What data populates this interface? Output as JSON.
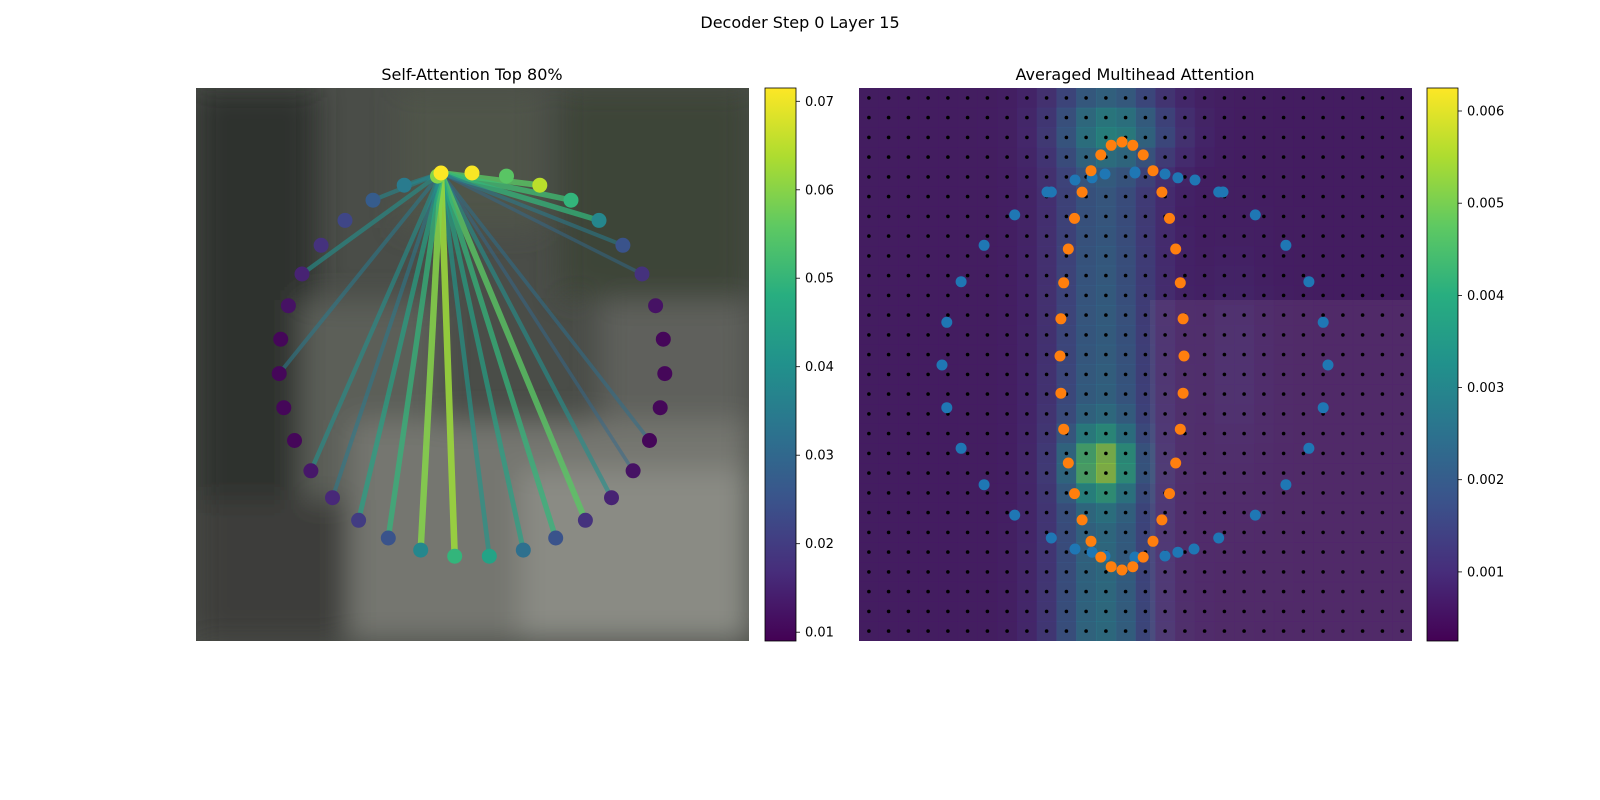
{
  "figure": {
    "suptitle": "Decoder Step 0 Layer 15"
  },
  "chart_data": [
    {
      "type": "scatter",
      "title": "Self-Attention Top 80%",
      "description_kind": "attention graph over a ring of points with colorbar",
      "colormap": "viridis",
      "colorbar": {
        "range": [
          0.009,
          0.0715
        ],
        "ticks": [
          "0.01",
          "0.02",
          "0.03",
          "0.04",
          "0.05",
          "0.06",
          "0.07"
        ]
      },
      "source_point": 0,
      "point_attention": [
        0.071,
        0.055,
        0.065,
        0.05,
        0.038,
        0.025,
        0.018,
        0.012,
        0.01,
        0.01,
        0.01,
        0.01,
        0.012,
        0.015,
        0.018,
        0.025,
        0.032,
        0.045,
        0.05,
        0.038,
        0.025,
        0.02,
        0.016,
        0.013,
        0.01,
        0.01,
        0.01,
        0.01,
        0.012,
        0.015,
        0.018,
        0.022,
        0.027,
        0.035,
        0.06
      ],
      "edge_weights": [
        {
          "to": 34,
          "w": 0.06
        },
        {
          "to": 33,
          "w": 0.038
        },
        {
          "to": 32,
          "w": 0.038
        },
        {
          "to": 2,
          "w": 0.055
        },
        {
          "to": 3,
          "w": 0.052
        },
        {
          "to": 4,
          "w": 0.05
        },
        {
          "to": 5,
          "w": 0.035
        },
        {
          "to": 6,
          "w": 0.03
        },
        {
          "to": 11,
          "w": 0.032
        },
        {
          "to": 12,
          "w": 0.03
        },
        {
          "to": 13,
          "w": 0.04
        },
        {
          "to": 14,
          "w": 0.055
        },
        {
          "to": 15,
          "w": 0.05
        },
        {
          "to": 16,
          "w": 0.045
        },
        {
          "to": 17,
          "w": 0.042
        },
        {
          "to": 18,
          "w": 0.062
        },
        {
          "to": 19,
          "w": 0.06
        },
        {
          "to": 20,
          "w": 0.05
        },
        {
          "to": 21,
          "w": 0.045
        },
        {
          "to": 22,
          "w": 0.035
        },
        {
          "to": 23,
          "w": 0.04
        },
        {
          "to": 26,
          "w": 0.035
        },
        {
          "to": 29,
          "w": 0.04
        }
      ]
    },
    {
      "type": "heatmap",
      "title": "Averaged Multihead Attention",
      "colormap": "viridis",
      "colorbar": {
        "range": [
          0.00025,
          0.00625
        ],
        "ticks": [
          "0.001",
          "0.002",
          "0.003",
          "0.004",
          "0.005",
          "0.006"
        ]
      },
      "grid_size": [
        28,
        28
      ],
      "peak_value": 0.0058,
      "series": [
        {
          "color": "#1f77b4"
        },
        {
          "color": "#ff7f0e"
        }
      ]
    }
  ]
}
